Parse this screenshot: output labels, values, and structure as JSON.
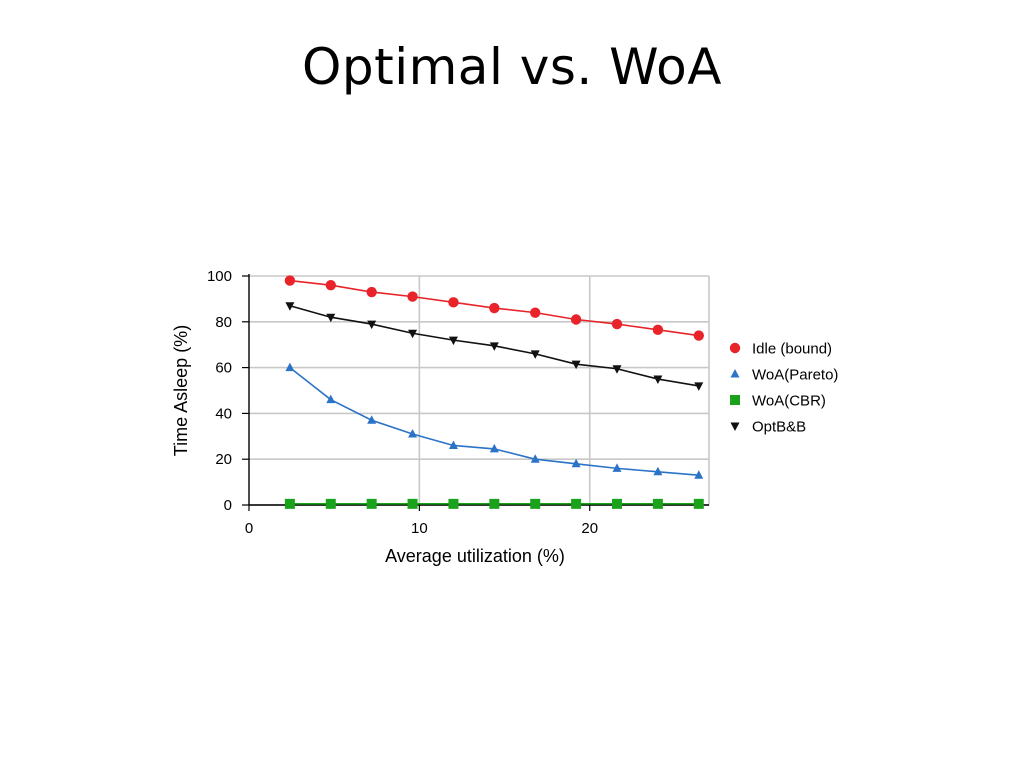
{
  "slide": {
    "title": "Optimal vs. WoA"
  },
  "chart_data": {
    "type": "line",
    "title": "",
    "xlabel": "Average utilization (%)",
    "ylabel": "Time Asleep (%)",
    "xlim": [
      0,
      27
    ],
    "ylim": [
      0,
      100
    ],
    "xticks": [
      "0",
      "10",
      "20"
    ],
    "yticks": [
      "0",
      "20",
      "40",
      "60",
      "80",
      "100"
    ],
    "grid": true,
    "legend_position": "right",
    "x": [
      2.4,
      4.8,
      7.2,
      9.6,
      12.0,
      14.4,
      16.8,
      19.2,
      21.6,
      24.0,
      26.4
    ],
    "series": [
      {
        "name": "Idle (bound)",
        "color": "#e8242a",
        "marker": "circle",
        "values": [
          98,
          96,
          93,
          91,
          88.5,
          86,
          84,
          81,
          79,
          76.5,
          74
        ]
      },
      {
        "name": "WoA(Pareto)",
        "color": "#2b73c7",
        "marker": "triangle-up",
        "values": [
          60,
          46,
          37,
          31,
          26,
          24.5,
          20,
          18,
          16,
          14.5,
          13
        ]
      },
      {
        "name": "WoA(CBR)",
        "color": "#1aa31a",
        "marker": "square",
        "values": [
          0.5,
          0.5,
          0.5,
          0.5,
          0.5,
          0.5,
          0.5,
          0.5,
          0.5,
          0.5,
          0.5
        ]
      },
      {
        "name": "OptB&B",
        "color": "#111111",
        "marker": "triangle-down",
        "values": [
          87,
          82,
          79,
          75,
          72,
          69.5,
          66,
          61.5,
          59.5,
          55,
          52
        ]
      }
    ]
  }
}
